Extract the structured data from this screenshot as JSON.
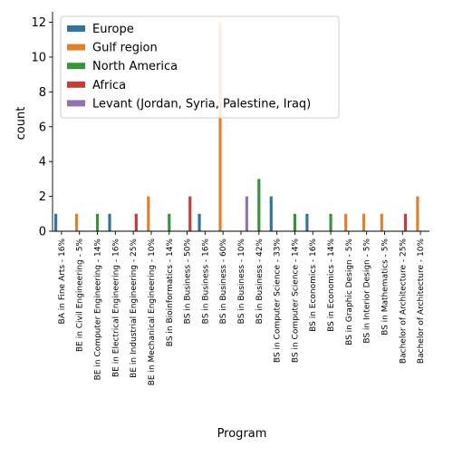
{
  "chart_data": {
    "type": "bar",
    "xlabel": "Program",
    "ylabel": "count",
    "ylim": [
      0,
      12.6
    ],
    "yticks": [
      0,
      2,
      4,
      6,
      8,
      10,
      12
    ],
    "grid": false,
    "legend_position": "top-left",
    "categories": [
      "BA in Fine Arts - 16%",
      "BE in Civil Engineering - 5%",
      "BE in Computer Engineering - 14%",
      "BE in Electrical Engineering - 16%",
      "BE in Industrial Engineering - 25%",
      "BE in Mechanical Engineering - 10%",
      "BS in Bioinformatics - 14%",
      "BS in Business - 50%",
      "BS in Business - 16%",
      "BS in Business - 60%",
      "BS in Business - 10%",
      "BS in Business - 42%",
      "BS in Computer Science - 33%",
      "BS in Computer Science - 14%",
      "BS in Economics - 16%",
      "BS in Economics - 14%",
      "BS in Graphic Design - 5%",
      "BS in Interior Design - 5%",
      "BS in Mathematics - 5%",
      "Bachelor of Architecture - 25%",
      "Bachelor of Architecture - 10%"
    ],
    "series": [
      {
        "name": "Europe",
        "color": "#3274a1",
        "values": [
          1,
          0,
          0,
          1,
          0,
          0,
          0,
          0,
          1,
          0,
          0,
          0,
          2,
          0,
          1,
          0,
          0,
          0,
          0,
          0,
          0
        ]
      },
      {
        "name": "Gulf region",
        "color": "#e1812c",
        "values": [
          0,
          1,
          0,
          0,
          0,
          2,
          0,
          0,
          0,
          12,
          0,
          0,
          0,
          0,
          0,
          0,
          1,
          1,
          1,
          0,
          2
        ]
      },
      {
        "name": "North America",
        "color": "#3a923a",
        "values": [
          0,
          0,
          1,
          0,
          0,
          0,
          1,
          0,
          0,
          0,
          0,
          3,
          0,
          1,
          0,
          1,
          0,
          0,
          0,
          0,
          0
        ]
      },
      {
        "name": "Africa",
        "color": "#c03d3e",
        "values": [
          0,
          0,
          0,
          0,
          1,
          0,
          0,
          2,
          0,
          0,
          0,
          0,
          0,
          0,
          0,
          0,
          0,
          0,
          0,
          1,
          0
        ]
      },
      {
        "name": "Levant (Jordan, Syria, Palestine, Iraq)",
        "color": "#9372b2",
        "values": [
          0,
          0,
          0,
          0,
          0,
          0,
          0,
          0,
          0,
          0,
          2,
          0,
          0,
          0,
          0,
          0,
          0,
          0,
          0,
          0,
          0
        ]
      }
    ]
  }
}
